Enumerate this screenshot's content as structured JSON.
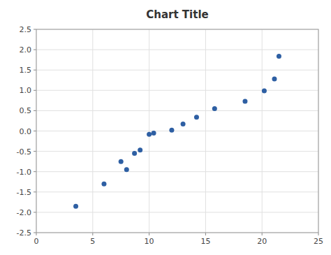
{
  "chart_data": {
    "type": "scatter",
    "title": "Chart Title",
    "x": [
      3.5,
      6.0,
      7.5,
      8.0,
      8.7,
      9.2,
      10.0,
      10.4,
      12.0,
      13.0,
      14.2,
      15.8,
      18.5,
      20.2,
      21.1,
      21.5
    ],
    "values": [
      -1.85,
      -1.3,
      -0.75,
      -0.95,
      -0.55,
      -0.47,
      -0.08,
      -0.05,
      0.02,
      0.17,
      0.34,
      0.55,
      0.73,
      0.99,
      1.28,
      1.84
    ],
    "color": "#2E5FA3",
    "xlim": [
      0,
      25
    ],
    "ylim": [
      -2.5,
      2.5
    ],
    "xticks": [
      0,
      5,
      10,
      15,
      20,
      25
    ],
    "yticks": [
      -2.5,
      {
        "value": -2.0,
        "label": "-2.0"
      },
      -1.5,
      {
        "value": -1.0,
        "label": "-1.0"
      },
      -0.5,
      {
        "value": 0.0,
        "label": "0.0"
      },
      0.5,
      {
        "value": 1.0,
        "label": "1.0"
      },
      1.5,
      {
        "value": 2.0,
        "label": "2.0"
      },
      2.5
    ],
    "grid": true
  }
}
